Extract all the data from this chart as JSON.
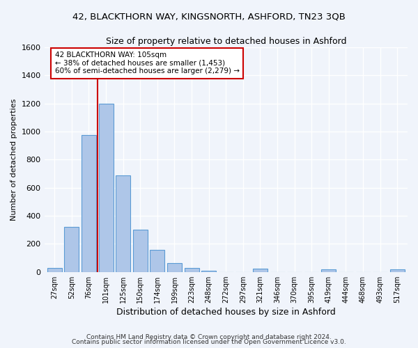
{
  "title": "42, BLACKTHORN WAY, KINGSNORTH, ASHFORD, TN23 3QB",
  "subtitle": "Size of property relative to detached houses in Ashford",
  "xlabel": "Distribution of detached houses by size in Ashford",
  "ylabel": "Number of detached properties",
  "bar_labels": [
    "27sqm",
    "52sqm",
    "76sqm",
    "101sqm",
    "125sqm",
    "150sqm",
    "174sqm",
    "199sqm",
    "223sqm",
    "248sqm",
    "272sqm",
    "297sqm",
    "321sqm",
    "346sqm",
    "370sqm",
    "395sqm",
    "419sqm",
    "444sqm",
    "468sqm",
    "493sqm",
    "517sqm"
  ],
  "bar_values": [
    27,
    320,
    975,
    1200,
    690,
    300,
    155,
    65,
    27,
    10,
    0,
    0,
    25,
    0,
    0,
    0,
    18,
    0,
    0,
    0,
    18
  ],
  "bar_color": "#aec6e8",
  "bar_edgecolor": "#5b9bd5",
  "property_line_x": 2.5,
  "annotation_title": "42 BLACKTHORN WAY: 105sqm",
  "annotation_line1": "← 38% of detached houses are smaller (1,453)",
  "annotation_line2": "60% of semi-detached houses are larger (2,279) →",
  "annotation_box_color": "#ffffff",
  "annotation_box_edgecolor": "#cc0000",
  "vline_color": "#cc0000",
  "ylim": [
    0,
    1600
  ],
  "yticks": [
    0,
    200,
    400,
    600,
    800,
    1000,
    1200,
    1400,
    1600
  ],
  "background_color": "#f0f4fb",
  "axes_background": "#f0f4fb",
  "grid_color": "#ffffff",
  "footer1": "Contains HM Land Registry data © Crown copyright and database right 2024.",
  "footer2": "Contains public sector information licensed under the Open Government Licence v3.0."
}
